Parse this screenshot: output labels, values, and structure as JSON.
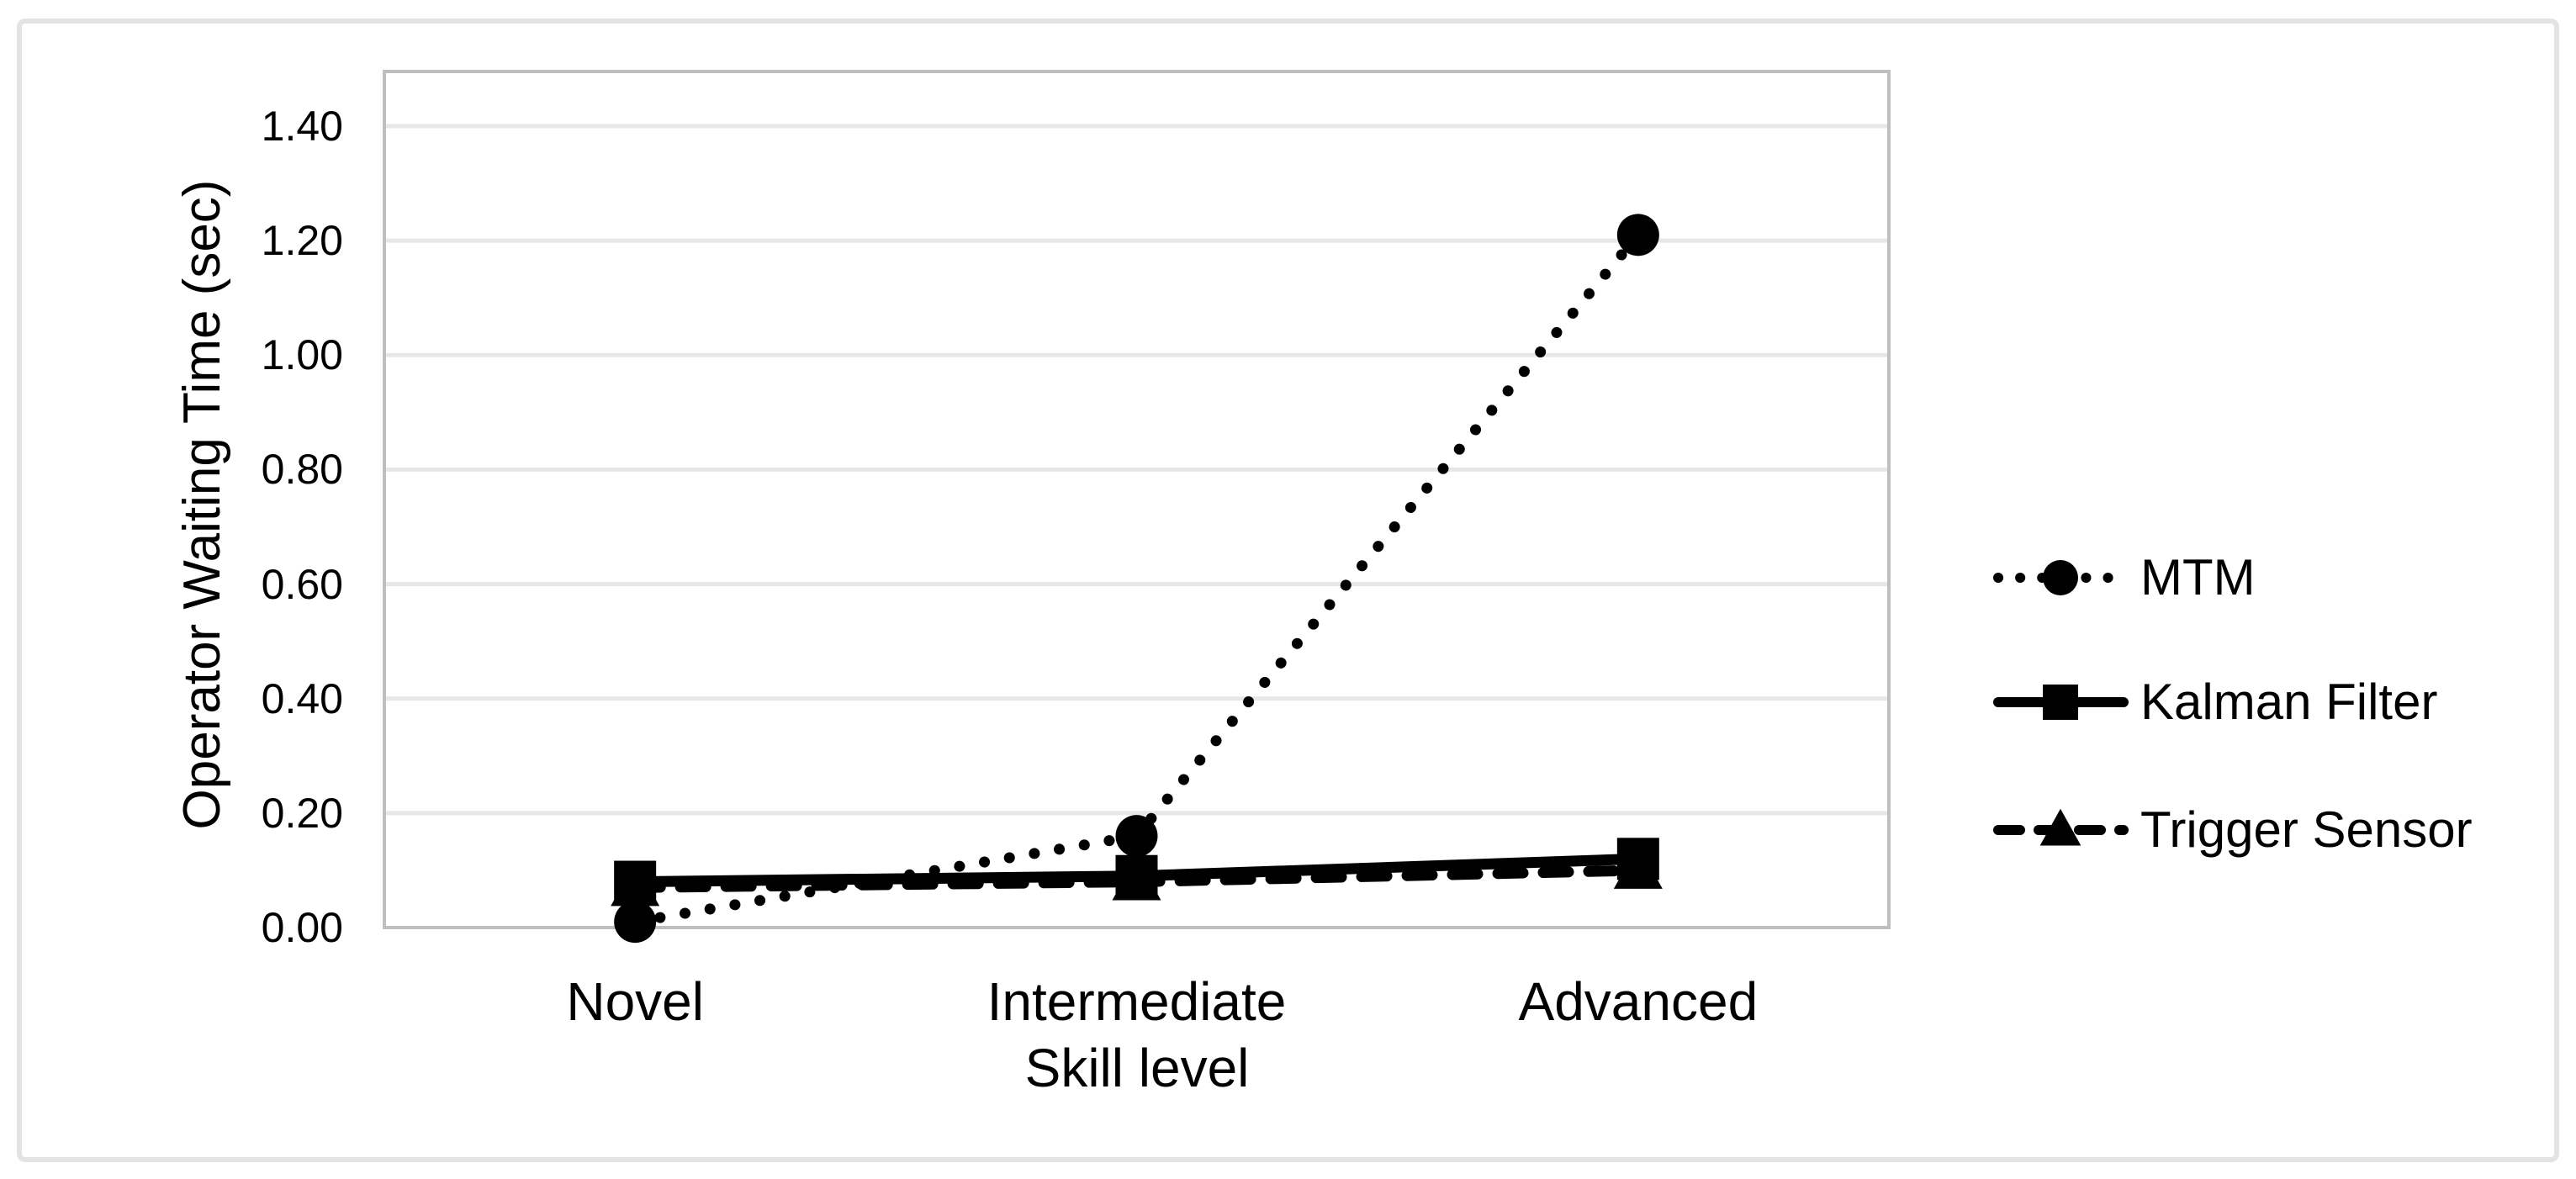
{
  "figure": {
    "background_color": "#ffffff",
    "outer_border_color": "#e3e3e3"
  },
  "chart_data": {
    "type": "line",
    "title": "",
    "xlabel": "Skill level",
    "ylabel": "Operator Waiting Time (sec)",
    "categories": [
      "Novel",
      "Intermediate",
      "Advanced"
    ],
    "series": [
      {
        "name": "MTM",
        "values": [
          0.01,
          0.16,
          1.21
        ],
        "line_style": "dotted",
        "marker": "circle",
        "color": "#000000"
      },
      {
        "name": "Kalman Filter",
        "values": [
          0.08,
          0.09,
          0.12
        ],
        "line_style": "solid",
        "marker": "square",
        "color": "#000000"
      },
      {
        "name": "Trigger Sensor",
        "values": [
          0.07,
          0.08,
          0.1
        ],
        "line_style": "dashed",
        "marker": "triangle",
        "color": "#000000"
      }
    ],
    "y_ticks": [
      "0.00",
      "0.20",
      "0.40",
      "0.60",
      "0.80",
      "1.00",
      "1.20",
      "1.40"
    ],
    "y_tick_values": [
      0.0,
      0.2,
      0.4,
      0.6,
      0.8,
      1.0,
      1.2,
      1.4
    ],
    "ylim": [
      0.0,
      1.5
    ],
    "grid": true,
    "legend_position": "right",
    "axis_line_color": "#bfbfbf",
    "gridline_color": "#e7e7e7",
    "text_color": "#000000"
  }
}
